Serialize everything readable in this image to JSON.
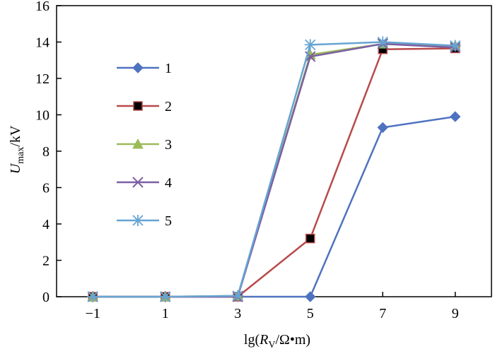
{
  "chart_data": {
    "type": "line",
    "xlabel": {
      "prefix": "lg(",
      "var": "R",
      "sub": "V",
      "suffix": "/Ω•m)"
    },
    "ylabel": {
      "var": "U",
      "sub": "max",
      "suffix": "/kV"
    },
    "x": [
      -1,
      1,
      3,
      5,
      7,
      9
    ],
    "x_tick_labels": [
      "−1",
      "1",
      "3",
      "5",
      "7",
      "9"
    ],
    "xlim": [
      -2,
      10
    ],
    "ylim": [
      0,
      16
    ],
    "y_ticks": [
      0,
      2,
      4,
      6,
      8,
      10,
      12,
      14,
      16
    ],
    "y_tick_labels": [
      "0",
      "2",
      "4",
      "6",
      "8",
      "10",
      "12",
      "14",
      "16"
    ],
    "grid": false,
    "legend_position": "left",
    "series": [
      {
        "name": "1",
        "marker": "diamond",
        "color": "#4f72c0",
        "values": [
          0,
          0,
          0,
          0,
          9.3,
          9.9
        ]
      },
      {
        "name": "2",
        "marker": "square",
        "color": "#b84a4a",
        "values": [
          0,
          0,
          0,
          3.2,
          13.6,
          13.65
        ]
      },
      {
        "name": "3",
        "marker": "triangle",
        "color": "#9bbb59",
        "values": [
          0,
          0,
          0.05,
          13.3,
          13.9,
          13.8
        ]
      },
      {
        "name": "4",
        "marker": "x",
        "color": "#7c5fa2",
        "values": [
          0,
          0,
          0,
          13.2,
          13.9,
          13.7
        ]
      },
      {
        "name": "5",
        "marker": "star",
        "color": "#66a4d4",
        "values": [
          0,
          0,
          0.05,
          13.85,
          14.0,
          13.8
        ]
      }
    ]
  }
}
